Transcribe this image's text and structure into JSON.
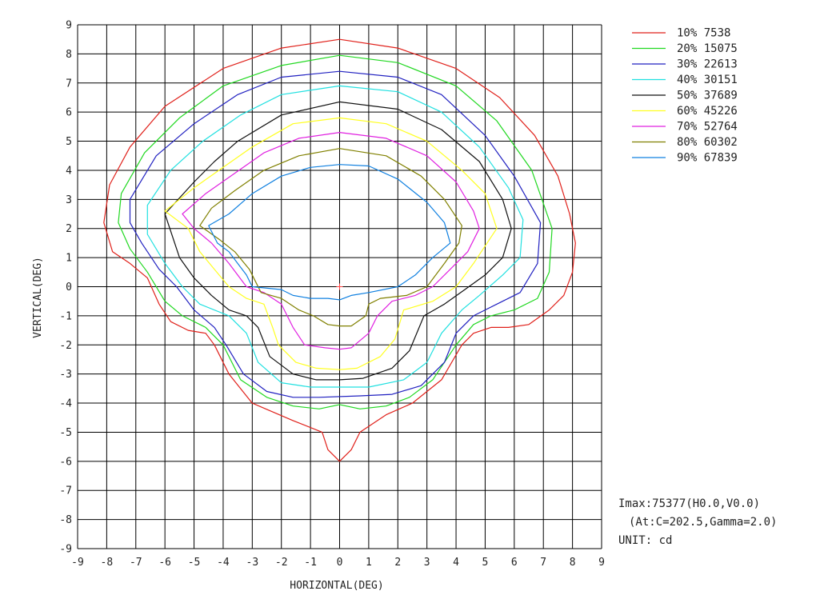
{
  "chart_data": {
    "type": "contour",
    "xlabel": "HORIZONTAL(DEG)",
    "ylabel": "VERTICAL(DEG)",
    "xlim": [
      -9,
      9
    ],
    "ylim": [
      -9,
      9
    ],
    "xticks": [
      "-9",
      "-8",
      "-7",
      "-6",
      "-5",
      "-4",
      "-3",
      "-2",
      "-1",
      "0",
      "1",
      "2",
      "3",
      "4",
      "5",
      "6",
      "7",
      "8",
      "9"
    ],
    "yticks": [
      "9",
      "8",
      "7",
      "6",
      "5",
      "4",
      "3",
      "2",
      "1",
      "0",
      "-1",
      "-2",
      "-3",
      "-4",
      "-5",
      "-6",
      "-7",
      "-8",
      "-9"
    ],
    "grid": true,
    "legend_position": "top-right",
    "center_marker": {
      "x": 0,
      "y": 0,
      "color": "#ff4040"
    },
    "series": [
      {
        "label": "10% 7538",
        "color": "#e0201a",
        "points": [
          [
            0,
            8.5
          ],
          [
            2,
            8.2
          ],
          [
            4,
            7.5
          ],
          [
            5.5,
            6.5
          ],
          [
            6.7,
            5.2
          ],
          [
            7.5,
            3.8
          ],
          [
            7.9,
            2.5
          ],
          [
            8.1,
            1.5
          ],
          [
            8,
            0.5
          ],
          [
            7.7,
            -0.3
          ],
          [
            7.2,
            -0.8
          ],
          [
            6.5,
            -1.3
          ],
          [
            5.8,
            -1.4
          ],
          [
            5.2,
            -1.4
          ],
          [
            4.6,
            -1.6
          ],
          [
            4.2,
            -2
          ],
          [
            3.5,
            -3.2
          ],
          [
            2.5,
            -4
          ],
          [
            1.6,
            -4.4
          ],
          [
            0.7,
            -5
          ],
          [
            0.4,
            -5.6
          ],
          [
            0,
            -6
          ],
          [
            -0.4,
            -5.6
          ],
          [
            -0.6,
            -5
          ],
          [
            -1.6,
            -4.6
          ],
          [
            -3,
            -4
          ],
          [
            -3.8,
            -3
          ],
          [
            -4.3,
            -2
          ],
          [
            -4.6,
            -1.6
          ],
          [
            -5.2,
            -1.5
          ],
          [
            -5.8,
            -1.2
          ],
          [
            -6.2,
            -0.6
          ],
          [
            -6.6,
            0.3
          ],
          [
            -7.2,
            0.8
          ],
          [
            -7.8,
            1.2
          ],
          [
            -8.1,
            2.2
          ],
          [
            -7.9,
            3.5
          ],
          [
            -7.2,
            4.8
          ],
          [
            -6,
            6.2
          ],
          [
            -4,
            7.5
          ],
          [
            -2,
            8.2
          ]
        ]
      },
      {
        "label": "20% 15075",
        "color": "#20d820",
        "points": [
          [
            0,
            7.95
          ],
          [
            2,
            7.7
          ],
          [
            4,
            6.9
          ],
          [
            5.4,
            5.7
          ],
          [
            6.6,
            4
          ],
          [
            7.3,
            2
          ],
          [
            7.2,
            0.5
          ],
          [
            6.8,
            -0.4
          ],
          [
            6,
            -0.8
          ],
          [
            5.2,
            -1
          ],
          [
            4.6,
            -1.3
          ],
          [
            4,
            -2
          ],
          [
            3.2,
            -3.2
          ],
          [
            2.4,
            -3.8
          ],
          [
            1.6,
            -4.1
          ],
          [
            0.7,
            -4.2
          ],
          [
            0,
            -4.05
          ],
          [
            -0.7,
            -4.2
          ],
          [
            -1.6,
            -4.1
          ],
          [
            -2.5,
            -3.8
          ],
          [
            -3.4,
            -3.2
          ],
          [
            -4,
            -2
          ],
          [
            -4.6,
            -1.4
          ],
          [
            -5.4,
            -1
          ],
          [
            -6,
            -0.5
          ],
          [
            -6.6,
            0.5
          ],
          [
            -7.2,
            1.3
          ],
          [
            -7.6,
            2.2
          ],
          [
            -7.5,
            3.2
          ],
          [
            -6.7,
            4.6
          ],
          [
            -5.5,
            5.8
          ],
          [
            -4,
            6.9
          ],
          [
            -2,
            7.6
          ]
        ]
      },
      {
        "label": "30% 22613",
        "color": "#2020c0",
        "points": [
          [
            0,
            7.4
          ],
          [
            2,
            7.2
          ],
          [
            3.5,
            6.6
          ],
          [
            5,
            5.2
          ],
          [
            6,
            3.8
          ],
          [
            6.9,
            2.2
          ],
          [
            6.8,
            0.8
          ],
          [
            6.2,
            -0.2
          ],
          [
            5.4,
            -0.6
          ],
          [
            4.6,
            -1
          ],
          [
            4,
            -1.6
          ],
          [
            3.6,
            -2.6
          ],
          [
            2.8,
            -3.4
          ],
          [
            1.8,
            -3.7
          ],
          [
            0.7,
            -3.75
          ],
          [
            -0.7,
            -3.8
          ],
          [
            -1.6,
            -3.8
          ],
          [
            -2.5,
            -3.6
          ],
          [
            -3.3,
            -3
          ],
          [
            -3.9,
            -2
          ],
          [
            -4.3,
            -1.4
          ],
          [
            -5,
            -0.8
          ],
          [
            -5.6,
            0
          ],
          [
            -6.2,
            0.6
          ],
          [
            -6.8,
            1.5
          ],
          [
            -7.2,
            2.2
          ],
          [
            -7.2,
            3
          ],
          [
            -6.3,
            4.5
          ],
          [
            -5,
            5.6
          ],
          [
            -3.5,
            6.6
          ],
          [
            -2,
            7.2
          ]
        ]
      },
      {
        "label": "40% 30151",
        "color": "#20e0e0",
        "points": [
          [
            0,
            6.9
          ],
          [
            2,
            6.7
          ],
          [
            3.5,
            6
          ],
          [
            4.8,
            4.8
          ],
          [
            5.8,
            3.4
          ],
          [
            6.3,
            2.3
          ],
          [
            6.2,
            1
          ],
          [
            5.6,
            0.4
          ],
          [
            4.8,
            -0.3
          ],
          [
            4.2,
            -0.8
          ],
          [
            3.5,
            -1.6
          ],
          [
            3,
            -2.6
          ],
          [
            2.2,
            -3.2
          ],
          [
            1,
            -3.45
          ],
          [
            0,
            -3.45
          ],
          [
            -1,
            -3.45
          ],
          [
            -2,
            -3.3
          ],
          [
            -2.8,
            -2.6
          ],
          [
            -3.2,
            -1.6
          ],
          [
            -3.8,
            -1
          ],
          [
            -4.8,
            -0.6
          ],
          [
            -5.4,
            0
          ],
          [
            -6,
            0.8
          ],
          [
            -6.6,
            1.8
          ],
          [
            -6.6,
            2.8
          ],
          [
            -5.8,
            4
          ],
          [
            -4.7,
            5
          ],
          [
            -3.4,
            5.9
          ],
          [
            -2,
            6.6
          ]
        ]
      },
      {
        "label": "50% 37689",
        "color": "#111111",
        "points": [
          [
            0,
            6.35
          ],
          [
            2,
            6.1
          ],
          [
            3.5,
            5.4
          ],
          [
            4.8,
            4.3
          ],
          [
            5.6,
            3
          ],
          [
            5.9,
            2
          ],
          [
            5.6,
            1
          ],
          [
            5,
            0.4
          ],
          [
            4.3,
            -0.1
          ],
          [
            3.6,
            -0.6
          ],
          [
            2.9,
            -1
          ],
          [
            2.4,
            -2.2
          ],
          [
            1.8,
            -2.8
          ],
          [
            0.8,
            -3.15
          ],
          [
            0,
            -3.2
          ],
          [
            -0.8,
            -3.2
          ],
          [
            -1.6,
            -3
          ],
          [
            -2.4,
            -2.4
          ],
          [
            -2.8,
            -1.4
          ],
          [
            -3.2,
            -1
          ],
          [
            -3.8,
            -0.8
          ],
          [
            -4.4,
            -0.3
          ],
          [
            -5,
            0.3
          ],
          [
            -5.5,
            1
          ],
          [
            -6,
            2.5
          ],
          [
            -5,
            3.6
          ],
          [
            -4.3,
            4.3
          ],
          [
            -3.5,
            5
          ],
          [
            -2,
            5.9
          ]
        ]
      },
      {
        "label": "60% 45226",
        "color": "#ffff20",
        "points": [
          [
            0,
            5.8
          ],
          [
            1.6,
            5.6
          ],
          [
            3,
            5
          ],
          [
            4.2,
            4
          ],
          [
            5,
            3.2
          ],
          [
            5.4,
            2
          ],
          [
            5,
            1.4
          ],
          [
            4.6,
            0.8
          ],
          [
            4,
            0
          ],
          [
            3.2,
            -0.5
          ],
          [
            2.2,
            -0.8
          ],
          [
            1.9,
            -1.8
          ],
          [
            1.4,
            -2.4
          ],
          [
            0.6,
            -2.8
          ],
          [
            0,
            -2.85
          ],
          [
            -0.8,
            -2.8
          ],
          [
            -1.5,
            -2.6
          ],
          [
            -2.1,
            -2
          ],
          [
            -2.3,
            -1.4
          ],
          [
            -2.6,
            -0.6
          ],
          [
            -3.2,
            -0.4
          ],
          [
            -3.8,
            0
          ],
          [
            -4.3,
            0.6
          ],
          [
            -4.8,
            1.2
          ],
          [
            -5.2,
            2
          ],
          [
            -6,
            2.6
          ],
          [
            -5,
            3.4
          ],
          [
            -4,
            4.1
          ],
          [
            -3,
            4.8
          ],
          [
            -1.6,
            5.6
          ]
        ]
      },
      {
        "label": "70% 52764",
        "color": "#e020e0",
        "points": [
          [
            0,
            5.3
          ],
          [
            1.6,
            5.1
          ],
          [
            3,
            4.5
          ],
          [
            4,
            3.6
          ],
          [
            4.6,
            2.6
          ],
          [
            4.8,
            2
          ],
          [
            4.4,
            1.2
          ],
          [
            3.8,
            0.6
          ],
          [
            3.2,
            0
          ],
          [
            2.6,
            -0.3
          ],
          [
            1.8,
            -0.5
          ],
          [
            1.3,
            -1
          ],
          [
            1,
            -1.6
          ],
          [
            0.4,
            -2.1
          ],
          [
            0,
            -2.15
          ],
          [
            -0.5,
            -2.1
          ],
          [
            -1.2,
            -2
          ],
          [
            -1.6,
            -1.4
          ],
          [
            -2,
            -0.6
          ],
          [
            -2.6,
            -0.2
          ],
          [
            -3.2,
            0
          ],
          [
            -3.8,
            0.8
          ],
          [
            -4.4,
            1.5
          ],
          [
            -5,
            2
          ],
          [
            -5.4,
            2.5
          ],
          [
            -4.6,
            3.2
          ],
          [
            -3.6,
            3.9
          ],
          [
            -2.6,
            4.6
          ],
          [
            -1.4,
            5.1
          ]
        ]
      },
      {
        "label": "80% 60302",
        "color": "#808000",
        "points": [
          [
            0,
            4.75
          ],
          [
            1.6,
            4.5
          ],
          [
            2.8,
            3.8
          ],
          [
            3.6,
            3
          ],
          [
            4.2,
            2.1
          ],
          [
            4.1,
            1.5
          ],
          [
            3.6,
            0.8
          ],
          [
            3,
            0
          ],
          [
            2.3,
            -0.3
          ],
          [
            1.4,
            -0.4
          ],
          [
            1,
            -0.6
          ],
          [
            0.9,
            -1
          ],
          [
            0.4,
            -1.35
          ],
          [
            0,
            -1.35
          ],
          [
            -0.4,
            -1.3
          ],
          [
            -0.9,
            -1
          ],
          [
            -1.4,
            -0.8
          ],
          [
            -2,
            -0.4
          ],
          [
            -2.7,
            -0.2
          ],
          [
            -3.1,
            0.6
          ],
          [
            -3.6,
            1.2
          ],
          [
            -4.1,
            1.6
          ],
          [
            -4.8,
            2.1
          ],
          [
            -4.4,
            2.7
          ],
          [
            -3.6,
            3.3
          ],
          [
            -2.6,
            4
          ],
          [
            -1.4,
            4.5
          ]
        ]
      },
      {
        "label": "90% 67839",
        "color": "#1080e0",
        "points": [
          [
            0,
            4.2
          ],
          [
            1,
            4.15
          ],
          [
            2,
            3.7
          ],
          [
            3,
            2.9
          ],
          [
            3.6,
            2.2
          ],
          [
            3.8,
            1.5
          ],
          [
            3.2,
            1
          ],
          [
            2.6,
            0.4
          ],
          [
            2,
            0
          ],
          [
            1,
            -0.2
          ],
          [
            0.4,
            -0.3
          ],
          [
            0,
            -0.45
          ],
          [
            -0.4,
            -0.4
          ],
          [
            -1,
            -0.4
          ],
          [
            -1.6,
            -0.3
          ],
          [
            -2,
            -0.1
          ],
          [
            -3,
            0
          ],
          [
            -3.2,
            0.4
          ],
          [
            -3.5,
            0.8
          ],
          [
            -3.8,
            1.2
          ],
          [
            -4.2,
            1.5
          ],
          [
            -4.5,
            2.1
          ],
          [
            -3.8,
            2.5
          ],
          [
            -3,
            3.2
          ],
          [
            -2,
            3.8
          ],
          [
            -1,
            4.1
          ]
        ]
      }
    ]
  },
  "info": {
    "line1": "Imax:75377(H0.0,V0.0)",
    "line2": "(At:C=202.5,Gamma=2.0)",
    "line3": "UNIT: cd"
  }
}
